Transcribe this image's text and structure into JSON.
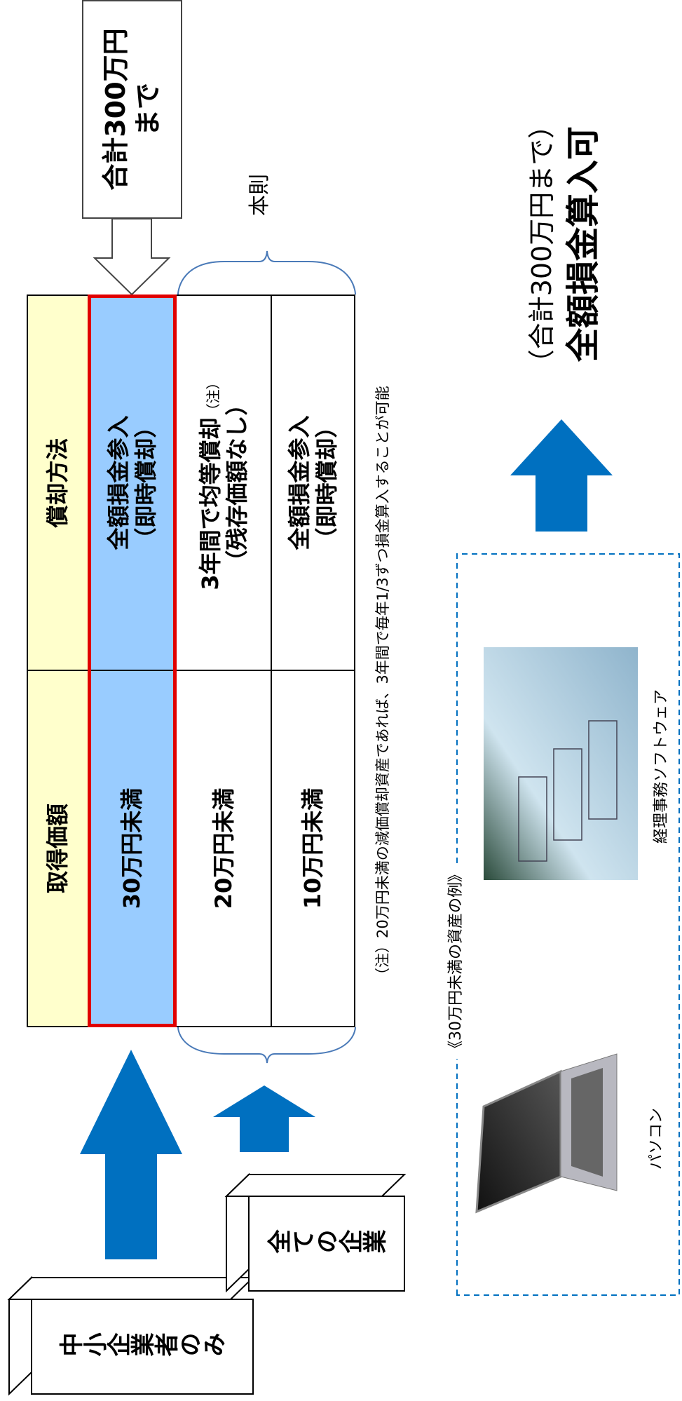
{
  "top_box": "合計300万円まで",
  "table": {
    "header": [
      "取得価額",
      "償却方法"
    ],
    "rows": [
      {
        "amount": "30万円未満",
        "method": "全額損金参入",
        "method_note": "（即時償却）"
      },
      {
        "amount": "20万円未満",
        "method": "3年間で均等償却",
        "method_mark": "（注）",
        "method_note": "（残存価額なし）"
      },
      {
        "amount": "10万円未満",
        "method": "全額損金参入",
        "method_note": "（即時償却）"
      }
    ]
  },
  "brace_label": "本則",
  "note": "（注）20万円未満の減価償却資産であれば、3年間で毎年1/3ずつ損金算入することが可能",
  "targets": [
    "中小企業者のみ",
    "全ての企業"
  ],
  "result": {
    "sub": "（合計300万円まで）",
    "main": "全額損金算入可"
  },
  "examples": {
    "title": "《30万円未満の資産の例》",
    "items": [
      "パソコン",
      "経理事務ソフトウェア"
    ]
  }
}
